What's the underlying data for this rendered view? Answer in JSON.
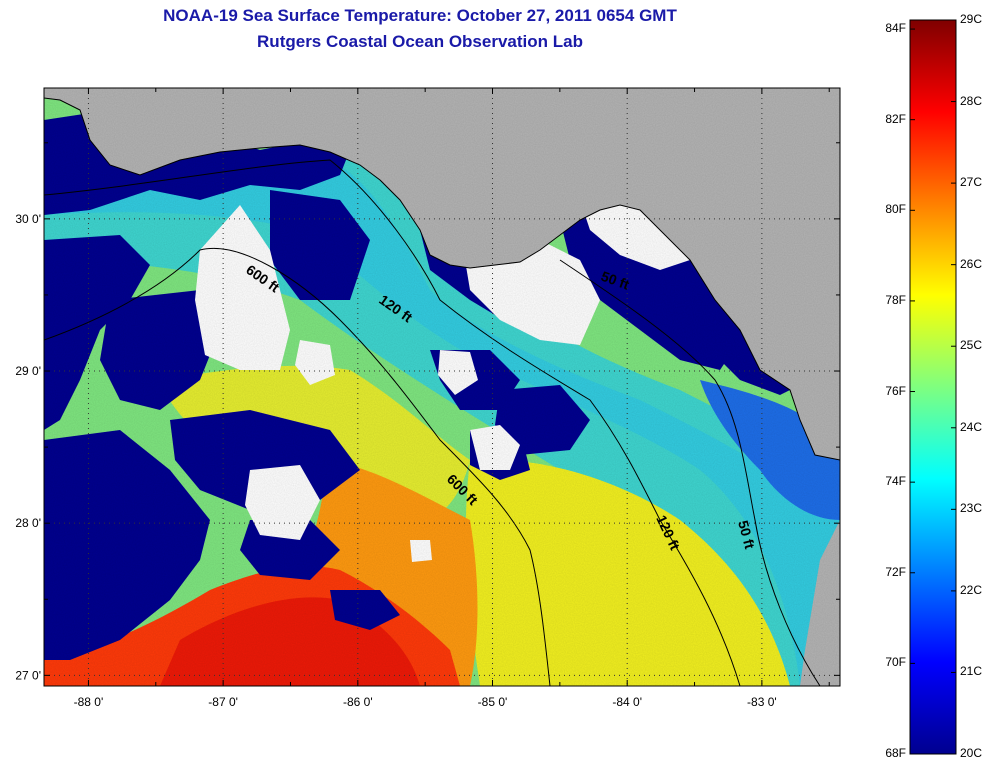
{
  "title": {
    "line1": "NOAA-19 Sea Surface Temperature:  October 27, 2011 0654 GMT",
    "line2": "Rutgers Coastal Ocean Observation Lab"
  },
  "map": {
    "x_ticks": [
      "-88 0'",
      "-87 0'",
      "-86 0'",
      "-85 0'",
      "-84 0'",
      "-83 0'"
    ],
    "x_tick_values": [
      -88,
      -87,
      -86,
      -85,
      -84,
      -83
    ],
    "y_ticks": [
      "30 0'",
      "29 0'",
      "28 0'",
      "27 0'"
    ],
    "y_tick_values": [
      30,
      29,
      28,
      27
    ],
    "lon_range": [
      -88.33,
      -82.42
    ],
    "lat_range": [
      26.93,
      30.86
    ],
    "contour_labels": [
      "600 ft",
      "120 ft",
      "600 ft",
      "120 ft",
      "50 ft",
      "50 ft"
    ],
    "colors": {
      "land": "#b4b4b4",
      "cloud": "#ffffff",
      "cold": "#00008f",
      "gridline": "#333333"
    }
  },
  "colorbar": {
    "fahrenheit_labels": [
      "84F",
      "82F",
      "80F",
      "78F",
      "76F",
      "74F",
      "72F",
      "70F",
      "68F"
    ],
    "celsius_labels": [
      "29C",
      "28C",
      "27C",
      "26C",
      "25C",
      "24C",
      "23C",
      "22C",
      "21C",
      "20C"
    ],
    "celsius_range": [
      20,
      29
    ],
    "colormap": [
      "#00008f",
      "#0000ff",
      "#007fff",
      "#00ffff",
      "#7fff7f",
      "#ffff00",
      "#ff7f00",
      "#ff0000",
      "#7f0000"
    ]
  }
}
